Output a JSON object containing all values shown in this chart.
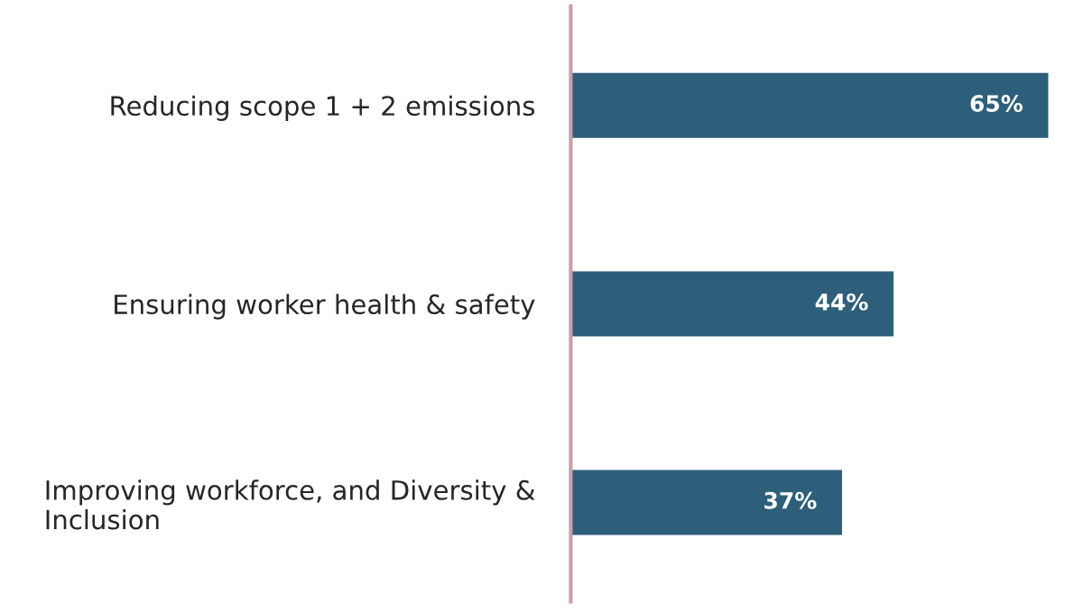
{
  "chart_data": {
    "type": "bar",
    "orientation": "horizontal",
    "categories": [
      "Reducing scope 1 + 2 emissions",
      "Ensuring worker health & safety",
      "Improving workforce, and Diversity &\nInclusion"
    ],
    "values": [
      65,
      44,
      37
    ],
    "value_labels": [
      "65%",
      "44%",
      "37%"
    ],
    "color": "#2e5f7a",
    "tick_labels": "y",
    "grid": false,
    "legend": false
  }
}
